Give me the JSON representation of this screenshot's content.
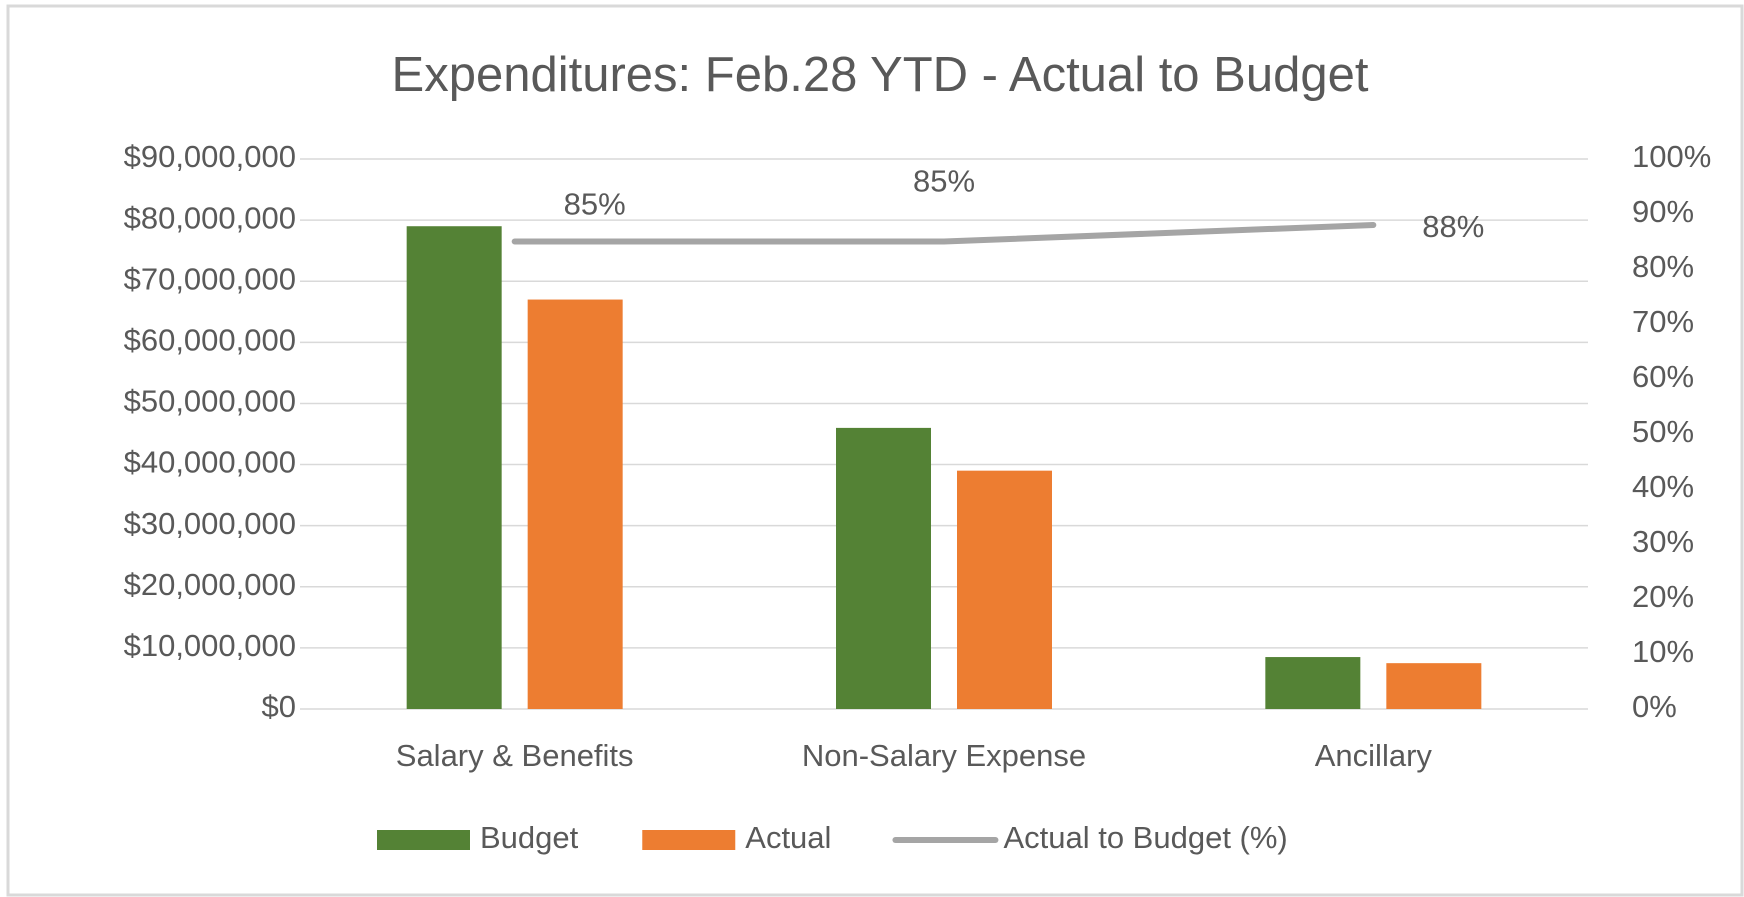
{
  "chart_data": {
    "type": "bar",
    "title": "Expenditures: Feb.28 YTD  - Actual to Budget",
    "categories": [
      "Salary & Benefits",
      "Non-Salary Expense",
      "Ancillary"
    ],
    "series": [
      {
        "name": "Budget",
        "color": "#548235",
        "values": [
          79000000,
          46000000,
          8500000
        ]
      },
      {
        "name": "Actual",
        "color": "#ed7d31",
        "values": [
          67000000,
          39000000,
          7500000
        ]
      },
      {
        "name": "Actual to Budget (%)",
        "type": "line",
        "axis": "y2",
        "color": "#a5a5a5",
        "values": [
          85,
          85,
          88
        ],
        "value_labels": [
          "85%",
          "85%",
          "88%"
        ]
      }
    ],
    "ylim": [
      0,
      90000000
    ],
    "yticks": [
      {
        "value": 0,
        "label": "$0"
      },
      {
        "value": 10000000,
        "label": "$10,000,000"
      },
      {
        "value": 20000000,
        "label": "$20,000,000"
      },
      {
        "value": 30000000,
        "label": "$30,000,000"
      },
      {
        "value": 40000000,
        "label": "$40,000,000"
      },
      {
        "value": 50000000,
        "label": "$50,000,000"
      },
      {
        "value": 60000000,
        "label": "$60,000,000"
      },
      {
        "value": 70000000,
        "label": "$70,000,000"
      },
      {
        "value": 80000000,
        "label": "$80,000,000"
      },
      {
        "value": 90000000,
        "label": "$90,000,000"
      }
    ],
    "y2lim": [
      0,
      100
    ],
    "y2ticks": [
      {
        "value": 0,
        "label": "0%"
      },
      {
        "value": 10,
        "label": "10%"
      },
      {
        "value": 20,
        "label": "20%"
      },
      {
        "value": 30,
        "label": "30%"
      },
      {
        "value": 40,
        "label": "40%"
      },
      {
        "value": 50,
        "label": "50%"
      },
      {
        "value": 60,
        "label": "60%"
      },
      {
        "value": 70,
        "label": "70%"
      },
      {
        "value": 80,
        "label": "80%"
      },
      {
        "value": 90,
        "label": "90%"
      },
      {
        "value": 100,
        "label": "100%"
      }
    ],
    "grid": true,
    "legend": "bottom"
  }
}
